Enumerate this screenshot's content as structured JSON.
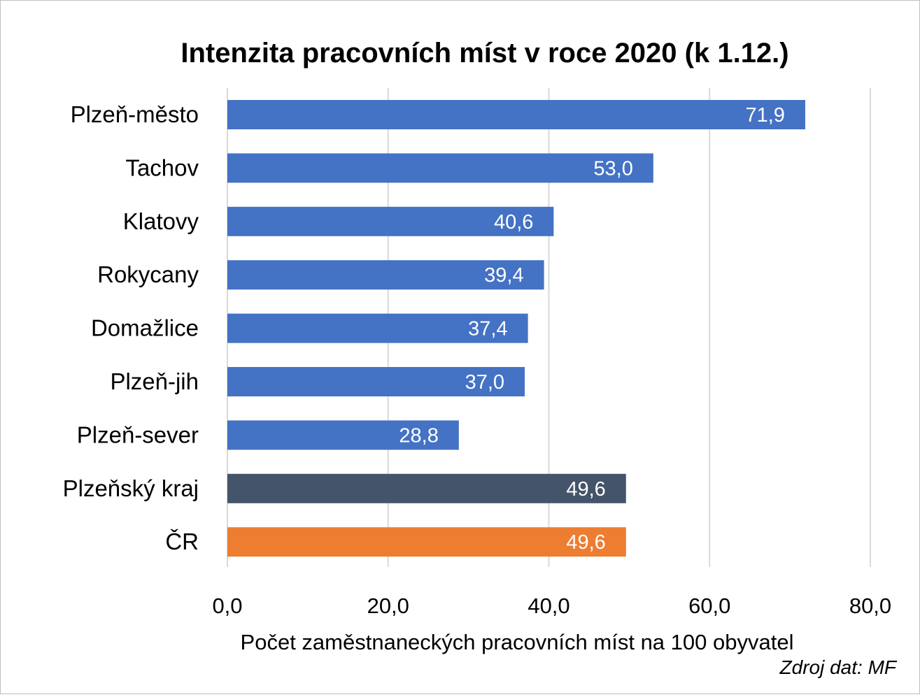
{
  "chart_data": {
    "type": "bar",
    "orientation": "horizontal",
    "title": "Intenzita pracovních míst v roce 2020 (k 1.12.)",
    "xlabel": "Počet zaměstnaneckých pracovních míst na 100 obyvatel",
    "source": "Zdroj dat: MF",
    "xlim": [
      0,
      80
    ],
    "xticks": [
      "0,0",
      "20,0",
      "40,0",
      "60,0",
      "80,0"
    ],
    "grid": true,
    "categories": [
      "Plzeň-město",
      "Tachov",
      "Klatovy",
      "Rokycany",
      "Domažlice",
      "Plzeň-jih",
      "Plzeň-sever",
      "Plzeňský kraj",
      "ČR"
    ],
    "values": [
      71.9,
      53.0,
      40.6,
      39.4,
      37.4,
      37.0,
      28.8,
      49.6,
      49.6
    ],
    "data_labels": [
      "71,9",
      "53,0",
      "40,6",
      "39,4",
      "37,4",
      "37,0",
      "28,8",
      "49,6",
      "49,6"
    ],
    "colors": [
      "#4472c4",
      "#4472c4",
      "#4472c4",
      "#4472c4",
      "#4472c4",
      "#4472c4",
      "#4472c4",
      "#44546a",
      "#ed7d31"
    ],
    "gridline_color": "#d9d9d9"
  }
}
